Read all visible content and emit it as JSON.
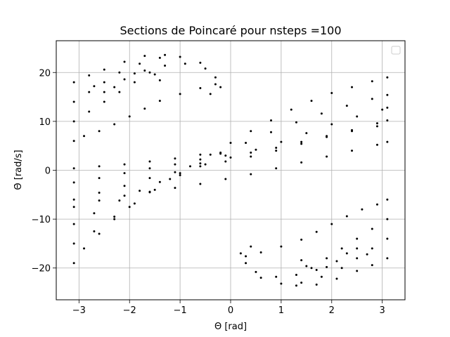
{
  "chart_data": {
    "type": "scatter",
    "title": "Sections de Poincaré pour nsteps =100",
    "xlabel": "Θ [rad]",
    "ylabel": "Θ̇ [rad/s]",
    "xlim": [
      -3.45,
      3.45
    ],
    "ylim": [
      -26.5,
      26.5
    ],
    "xticks": [
      -3,
      -2,
      -1,
      0,
      1,
      2,
      3
    ],
    "yticks": [
      -20,
      -10,
      0,
      10,
      20
    ],
    "xtick_labels": [
      "−3",
      "−2",
      "−1",
      "0",
      "1",
      "2",
      "3"
    ],
    "ytick_labels": [
      "−20",
      "−10",
      "0",
      "10",
      "20"
    ],
    "grid": true,
    "legend": {
      "placement": "top-right",
      "entries": []
    },
    "marker_color": "#000000",
    "grid_color": "#b0b0b0",
    "series": [
      {
        "points": [
          [
            -3.1,
            -19
          ],
          [
            -2.9,
            -16
          ],
          [
            -2.6,
            -13
          ],
          [
            -2.3,
            -10
          ],
          [
            -2.0,
            -7.5
          ],
          [
            -1.6,
            -4.5
          ],
          [
            -1.2,
            -1.8
          ],
          [
            -0.8,
            0.8
          ],
          [
            -0.4,
            3.2
          ],
          [
            0.0,
            5.6
          ],
          [
            0.4,
            8.0
          ],
          [
            0.8,
            10.2
          ],
          [
            1.2,
            12.4
          ],
          [
            1.6,
            14.2
          ],
          [
            2.0,
            15.8
          ],
          [
            2.4,
            17.0
          ],
          [
            2.8,
            18.2
          ],
          [
            3.1,
            19.0
          ],
          [
            -3.1,
            -15
          ],
          [
            -2.7,
            -12.5
          ],
          [
            -2.3,
            -9.5
          ],
          [
            -1.9,
            -6.8
          ],
          [
            -1.5,
            -4.0
          ],
          [
            -1.0,
            -1.0
          ],
          [
            -0.6,
            1.4
          ],
          [
            -0.2,
            3.4
          ],
          [
            0.3,
            5.6
          ],
          [
            0.8,
            7.8
          ],
          [
            1.3,
            9.8
          ],
          [
            1.8,
            11.6
          ],
          [
            2.3,
            13.2
          ],
          [
            2.8,
            14.6
          ],
          [
            3.1,
            15.4
          ],
          [
            -3.1,
            -11
          ],
          [
            -2.7,
            -8.8
          ],
          [
            -2.2,
            -6.2
          ],
          [
            -1.8,
            -4.2
          ],
          [
            -1.4,
            -2.4
          ],
          [
            -1.0,
            -0.6
          ],
          [
            -0.5,
            1.2
          ],
          [
            0.0,
            2.6
          ],
          [
            0.5,
            4.2
          ],
          [
            1.0,
            5.8
          ],
          [
            1.5,
            7.6
          ],
          [
            2.0,
            9.4
          ],
          [
            2.5,
            11.0
          ],
          [
            3.0,
            12.4
          ],
          [
            3.1,
            12.8
          ],
          [
            -3.1,
            -6
          ],
          [
            -2.6,
            -4.6
          ],
          [
            -2.1,
            -3.2
          ],
          [
            -1.6,
            -1.6
          ],
          [
            -1.1,
            -0.4
          ],
          [
            -0.6,
            0.8
          ],
          [
            -0.1,
            1.8
          ],
          [
            0.4,
            2.8
          ],
          [
            0.9,
            4.0
          ],
          [
            1.4,
            5.4
          ],
          [
            1.9,
            6.8
          ],
          [
            2.4,
            8.2
          ],
          [
            2.9,
            9.6
          ],
          [
            3.1,
            10.2
          ],
          [
            -3.1,
            -2.5
          ],
          [
            -2.6,
            -1.6
          ],
          [
            -2.1,
            -0.6
          ],
          [
            -1.6,
            0.4
          ],
          [
            -1.1,
            1.2
          ],
          [
            -0.6,
            2.2
          ],
          [
            -0.1,
            3.0
          ],
          [
            0.4,
            3.6
          ],
          [
            0.9,
            4.6
          ],
          [
            1.4,
            5.8
          ],
          [
            1.9,
            7.0
          ],
          [
            2.4,
            8.0
          ],
          [
            2.9,
            9.0
          ],
          [
            -3.1,
            -7.5
          ],
          [
            -2.6,
            -6.2
          ],
          [
            -2.1,
            -5.2
          ],
          [
            -1.6,
            -4.4
          ],
          [
            -1.1,
            -3.6
          ],
          [
            -0.6,
            -2.8
          ],
          [
            -0.1,
            -1.8
          ],
          [
            0.4,
            -0.8
          ],
          [
            0.9,
            0.4
          ],
          [
            1.4,
            1.6
          ],
          [
            1.9,
            2.8
          ],
          [
            2.4,
            4.0
          ],
          [
            2.9,
            5.2
          ],
          [
            3.1,
            5.8
          ],
          [
            -3.1,
            0.4
          ],
          [
            -2.6,
            0.8
          ],
          [
            -2.1,
            1.2
          ],
          [
            -1.6,
            1.8
          ],
          [
            -1.1,
            2.4
          ],
          [
            -0.6,
            3.2
          ],
          [
            -0.2,
            3.6
          ],
          [
            -3.1,
            6
          ],
          [
            -2.9,
            7
          ],
          [
            -2.6,
            8
          ],
          [
            -2.3,
            9.4
          ],
          [
            -2.0,
            11
          ],
          [
            -1.7,
            12.6
          ],
          [
            -1.4,
            14.2
          ],
          [
            -1.0,
            15.6
          ],
          [
            -0.6,
            16.8
          ],
          [
            -0.3,
            17.6
          ],
          [
            -3.1,
            10
          ],
          [
            -2.8,
            12
          ],
          [
            -2.5,
            14
          ],
          [
            -2.2,
            16
          ],
          [
            -1.9,
            18
          ],
          [
            -1.6,
            20
          ],
          [
            -1.3,
            21.4
          ],
          [
            -0.9,
            21.8
          ],
          [
            -0.5,
            20.8
          ],
          [
            -0.3,
            19.0
          ],
          [
            -0.2,
            17.0
          ],
          [
            -0.4,
            15.6
          ],
          [
            -3.1,
            14
          ],
          [
            -2.8,
            16
          ],
          [
            -2.5,
            18
          ],
          [
            -2.2,
            20
          ],
          [
            -1.8,
            21.8
          ],
          [
            -1.4,
            23.0
          ],
          [
            -1.0,
            23.2
          ],
          [
            -0.6,
            22.0
          ],
          [
            -3.1,
            18
          ],
          [
            -2.8,
            19.4
          ],
          [
            -2.5,
            20.6
          ],
          [
            -2.1,
            22.2
          ],
          [
            -1.7,
            23.4
          ],
          [
            -1.3,
            23.6
          ],
          [
            -2.7,
            17.2
          ],
          [
            -2.5,
            16.0
          ],
          [
            -2.3,
            17.0
          ],
          [
            -2.1,
            18.6
          ],
          [
            -1.9,
            19.8
          ],
          [
            -1.7,
            20.4
          ],
          [
            -1.5,
            19.6
          ],
          [
            -1.4,
            18.4
          ],
          [
            3.1,
            -6
          ],
          [
            2.9,
            -7
          ],
          [
            2.6,
            -8
          ],
          [
            2.3,
            -9.4
          ],
          [
            2.0,
            -11
          ],
          [
            1.7,
            -12.6
          ],
          [
            1.4,
            -14.2
          ],
          [
            1.0,
            -15.6
          ],
          [
            0.6,
            -16.8
          ],
          [
            0.3,
            -17.6
          ],
          [
            3.1,
            -10
          ],
          [
            2.8,
            -12
          ],
          [
            2.5,
            -14
          ],
          [
            2.2,
            -16
          ],
          [
            1.9,
            -18
          ],
          [
            1.6,
            -20
          ],
          [
            1.3,
            -21.4
          ],
          [
            0.9,
            -21.8
          ],
          [
            0.5,
            -20.8
          ],
          [
            0.3,
            -19.0
          ],
          [
            0.2,
            -17.0
          ],
          [
            0.4,
            -15.6
          ],
          [
            3.1,
            -14
          ],
          [
            2.8,
            -16
          ],
          [
            2.5,
            -18
          ],
          [
            2.2,
            -20
          ],
          [
            1.8,
            -21.8
          ],
          [
            1.4,
            -23.0
          ],
          [
            1.0,
            -23.2
          ],
          [
            0.6,
            -22.0
          ],
          [
            3.1,
            -18
          ],
          [
            2.8,
            -19.4
          ],
          [
            2.5,
            -20.6
          ],
          [
            2.1,
            -22.2
          ],
          [
            1.7,
            -23.4
          ],
          [
            1.3,
            -23.6
          ],
          [
            2.7,
            -17.2
          ],
          [
            2.5,
            -16.0
          ],
          [
            2.3,
            -17.0
          ],
          [
            2.1,
            -18.6
          ],
          [
            1.9,
            -19.8
          ],
          [
            1.7,
            -20.4
          ],
          [
            1.5,
            -19.6
          ],
          [
            1.4,
            -18.4
          ]
        ]
      }
    ]
  }
}
